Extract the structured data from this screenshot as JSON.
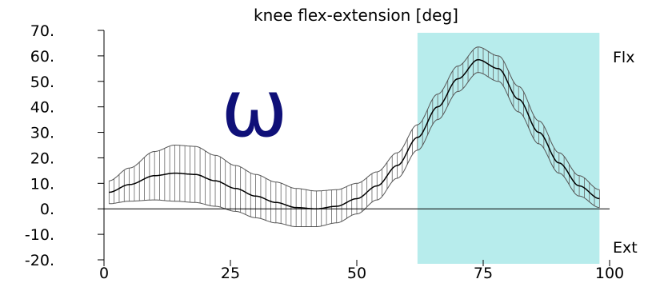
{
  "chart_data": {
    "type": "line",
    "title": "knee flex-extension [deg]",
    "xlim": [
      0,
      100
    ],
    "ylim": [
      -20,
      70
    ],
    "xticks": [
      "0",
      "25",
      "50",
      "75",
      "100"
    ],
    "yticks": [
      "70.",
      "60.",
      "50.",
      "40.",
      "30.",
      "20.",
      "10.",
      "0.",
      "-10.",
      "-20."
    ],
    "side_labels": {
      "top": "Flx",
      "bottom": "Ext"
    },
    "annotation": "ω",
    "highlight_region": {
      "x_start": 62,
      "x_end": 98,
      "color": "#b7ecec"
    },
    "series": [
      {
        "x": [
          1,
          5,
          10,
          14,
          18,
          22,
          26,
          30,
          34,
          38,
          42,
          46,
          50,
          54,
          58,
          62,
          66,
          70,
          74,
          78,
          82,
          86,
          90,
          94,
          98
        ],
        "mean": [
          6.5,
          9.5,
          13,
          14,
          13.5,
          11,
          8,
          5,
          2.5,
          0.5,
          0,
          1,
          4,
          9,
          17,
          28,
          40,
          51,
          58.5,
          55,
          43,
          30,
          18,
          9,
          4
        ],
        "sd": [
          4.5,
          6.5,
          9.5,
          11,
          11,
          10,
          9,
          8.5,
          8,
          7.5,
          7,
          6.5,
          6,
          5.5,
          5,
          5,
          5,
          5,
          5,
          5,
          5,
          4.5,
          4,
          4,
          3.5
        ]
      }
    ]
  }
}
